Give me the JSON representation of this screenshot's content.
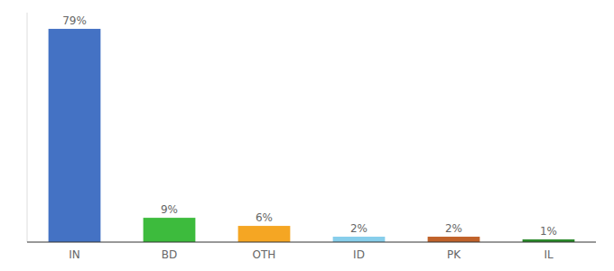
{
  "chart_data": {
    "type": "bar",
    "categories": [
      "IN",
      "BD",
      "OTH",
      "ID",
      "PK",
      "IL"
    ],
    "values": [
      79,
      9,
      6,
      2,
      2,
      1
    ],
    "value_labels": [
      "79%",
      "9%",
      "6%",
      "2%",
      "2%",
      "1%"
    ],
    "colors": [
      "#4472c4",
      "#3dbb3d",
      "#f5a623",
      "#87ceeb",
      "#c0622a",
      "#2a8a2a"
    ],
    "ylim": [
      0,
      85
    ],
    "data_labels": true,
    "tick_labels": "x"
  }
}
